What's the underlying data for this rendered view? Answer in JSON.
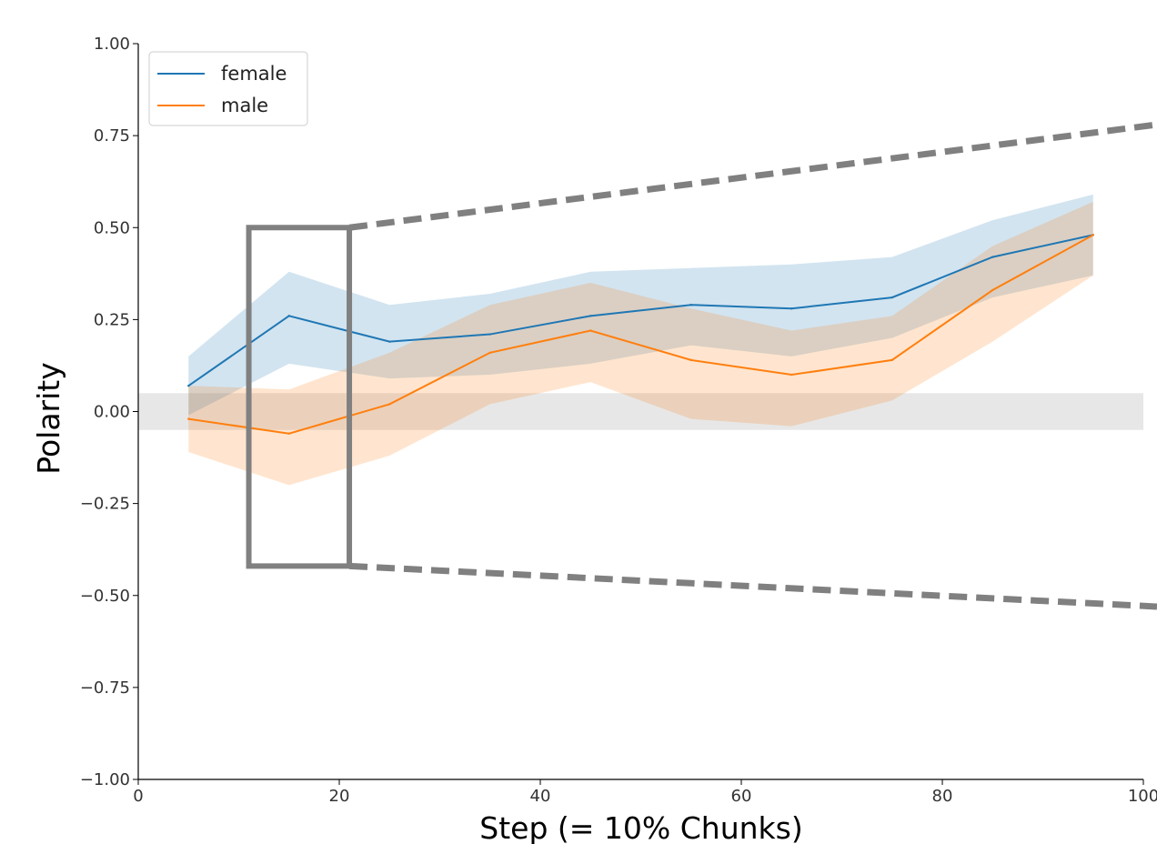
{
  "chart_data": {
    "type": "line",
    "xlabel": "Step (= 10% Chunks)",
    "ylabel": "Polarity",
    "xlim": [
      0,
      100
    ],
    "ylim": [
      -1.0,
      1.0
    ],
    "x_ticks": [
      0,
      20,
      40,
      60,
      80,
      100
    ],
    "x_tick_labels": [
      "0",
      "20",
      "40",
      "60",
      "80",
      "100"
    ],
    "y_ticks": [
      -1.0,
      -0.75,
      -0.5,
      -0.25,
      0.0,
      0.25,
      0.5,
      0.75,
      1.0
    ],
    "y_tick_labels": [
      "−1.00",
      "−0.75",
      "−0.50",
      "−0.25",
      "0.00",
      "0.25",
      "0.50",
      "0.75",
      "1.00"
    ],
    "grid": false,
    "legend_position": "top-left",
    "x": [
      5,
      15,
      25,
      35,
      45,
      55,
      65,
      75,
      85,
      95
    ],
    "series": [
      {
        "name": "female",
        "color": "#1f77b4",
        "values": [
          0.07,
          0.26,
          0.19,
          0.21,
          0.26,
          0.29,
          0.28,
          0.31,
          0.42,
          0.48
        ],
        "ci_upper": [
          0.15,
          0.38,
          0.29,
          0.32,
          0.38,
          0.39,
          0.4,
          0.42,
          0.52,
          0.59
        ],
        "ci_lower": [
          -0.01,
          0.13,
          0.09,
          0.1,
          0.13,
          0.18,
          0.15,
          0.2,
          0.31,
          0.37
        ]
      },
      {
        "name": "male",
        "color": "#ff7f0e",
        "values": [
          -0.02,
          -0.06,
          0.02,
          0.16,
          0.22,
          0.14,
          0.1,
          0.14,
          0.33,
          0.48
        ],
        "ci_upper": [
          0.07,
          0.06,
          0.16,
          0.29,
          0.35,
          0.28,
          0.22,
          0.26,
          0.45,
          0.57
        ],
        "ci_lower": [
          -0.11,
          -0.2,
          -0.12,
          0.02,
          0.08,
          -0.02,
          -0.04,
          0.03,
          0.19,
          0.37
        ]
      }
    ],
    "neutral_band": [
      -0.05,
      0.05
    ],
    "neutral_band_color": "#d3d3d3",
    "zoom_box": {
      "x_range": [
        11,
        21
      ],
      "y_range": [
        -0.42,
        0.5
      ],
      "color": "#808080"
    }
  }
}
